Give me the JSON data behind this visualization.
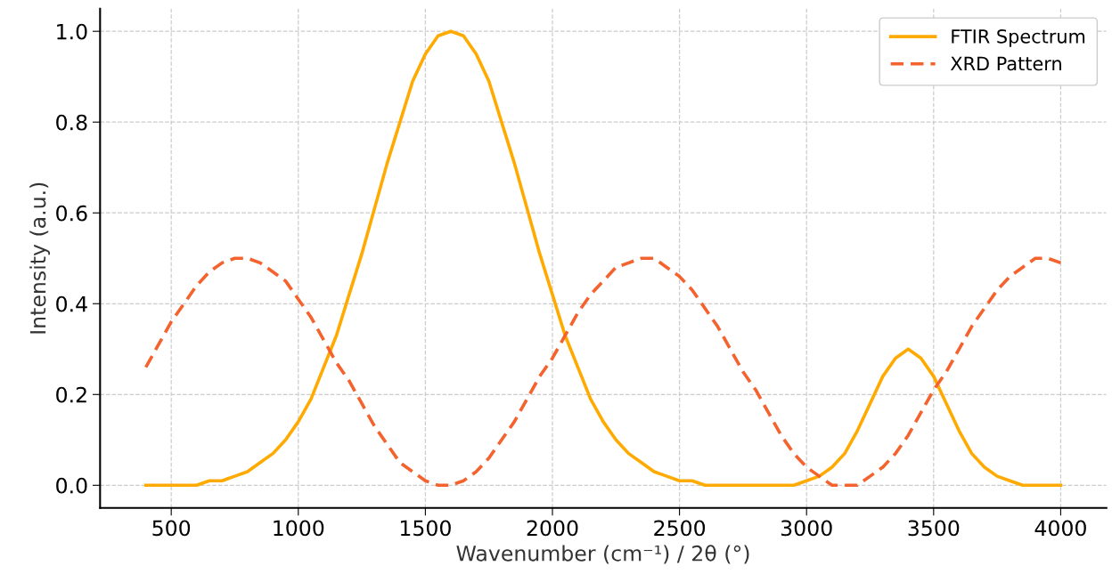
{
  "chart_data": {
    "type": "line",
    "xlabel": "Wavenumber (cm⁻¹) / 2θ (°)",
    "ylabel": "Intensity (a.u.)",
    "x": [
      400,
      450,
      500,
      550,
      600,
      650,
      700,
      750,
      800,
      850,
      900,
      950,
      1000,
      1050,
      1100,
      1150,
      1200,
      1250,
      1300,
      1350,
      1400,
      1450,
      1500,
      1550,
      1600,
      1650,
      1700,
      1750,
      1800,
      1850,
      1900,
      1950,
      2000,
      2050,
      2100,
      2150,
      2200,
      2250,
      2300,
      2350,
      2400,
      2450,
      2500,
      2550,
      2600,
      2650,
      2700,
      2750,
      2800,
      2850,
      2900,
      2950,
      3000,
      3050,
      3100,
      3150,
      3200,
      3250,
      3300,
      3350,
      3400,
      3450,
      3500,
      3550,
      3600,
      3650,
      3700,
      3750,
      3800,
      3850,
      3900,
      3950,
      4000
    ],
    "series": [
      {
        "name": "FTIR Spectrum",
        "color": "#ffaa00",
        "line_style": "solid",
        "values": [
          0.0,
          0.0,
          0.0,
          0.0,
          0.0,
          0.01,
          0.01,
          0.02,
          0.03,
          0.05,
          0.07,
          0.1,
          0.14,
          0.19,
          0.26,
          0.33,
          0.42,
          0.51,
          0.61,
          0.71,
          0.8,
          0.89,
          0.95,
          0.99,
          1.0,
          0.99,
          0.95,
          0.89,
          0.8,
          0.71,
          0.61,
          0.51,
          0.42,
          0.33,
          0.26,
          0.19,
          0.14,
          0.1,
          0.07,
          0.05,
          0.03,
          0.02,
          0.01,
          0.01,
          0.0,
          0.0,
          0.0,
          0.0,
          0.0,
          0.0,
          0.0,
          0.0,
          0.01,
          0.02,
          0.04,
          0.07,
          0.12,
          0.18,
          0.24,
          0.28,
          0.3,
          0.28,
          0.24,
          0.18,
          0.12,
          0.07,
          0.04,
          0.02,
          0.01,
          0.0,
          0.0,
          0.0,
          0.0
        ]
      },
      {
        "name": "XRD Pattern",
        "color": "#f4622e",
        "line_style": "dashed",
        "values": [
          0.26,
          0.31,
          0.36,
          0.4,
          0.44,
          0.47,
          0.49,
          0.5,
          0.5,
          0.49,
          0.47,
          0.45,
          0.41,
          0.37,
          0.32,
          0.27,
          0.23,
          0.18,
          0.13,
          0.09,
          0.05,
          0.03,
          0.01,
          0.0,
          0.0,
          0.01,
          0.03,
          0.06,
          0.1,
          0.14,
          0.19,
          0.24,
          0.28,
          0.33,
          0.38,
          0.42,
          0.45,
          0.48,
          0.49,
          0.5,
          0.5,
          0.48,
          0.46,
          0.43,
          0.39,
          0.35,
          0.3,
          0.25,
          0.21,
          0.16,
          0.11,
          0.07,
          0.04,
          0.02,
          0.0,
          0.0,
          0.0,
          0.02,
          0.04,
          0.07,
          0.11,
          0.16,
          0.21,
          0.25,
          0.3,
          0.35,
          0.39,
          0.43,
          0.46,
          0.48,
          0.5,
          0.5,
          0.49
        ]
      }
    ],
    "xlim": [
      220,
      4180
    ],
    "xticks": [
      500,
      1000,
      1500,
      2000,
      2500,
      3000,
      3500,
      4000
    ],
    "ylim": [
      -0.05,
      1.05
    ],
    "yticks": [
      {
        "value": 0,
        "label": "0.0"
      },
      {
        "value": 0.2,
        "label": "0.2"
      },
      {
        "value": 0.4,
        "label": "0.4"
      },
      {
        "value": 0.6,
        "label": "0.6"
      },
      {
        "value": 0.8,
        "label": "0.8"
      },
      {
        "value": 1,
        "label": "1.0"
      }
    ],
    "grid": true,
    "legend": "top right"
  }
}
